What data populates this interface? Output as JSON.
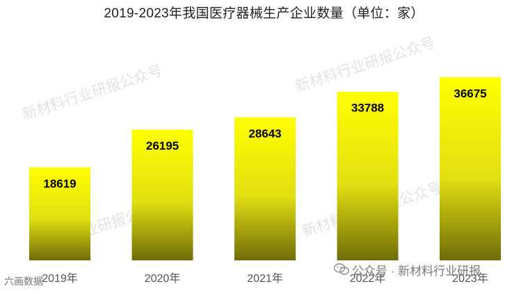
{
  "title": "2019-2023年我国医疗器械生产企业数量（单位：家）",
  "watermark_text": "新材料行业研报公众号",
  "footer_text": "公众号 · 新材料行业研报",
  "corner_logo_text": "六画数据",
  "colors": {
    "bar_top": "#ffff00",
    "bar_mid": "#e2df12",
    "bar_bottom": "#6f6c08",
    "label": "#000000",
    "tick": "#555555"
  },
  "chart_data": {
    "type": "bar",
    "title": "2019-2023年我国医疗器械生产企业数量（单位：家）",
    "categories": [
      "2019年",
      "2020年",
      "2021年",
      "2022年",
      "2023年"
    ],
    "values": [
      18619,
      26195,
      28643,
      33788,
      36675
    ],
    "data_labels": [
      "18619",
      "26195",
      "28643",
      "33788",
      "36675"
    ],
    "xlabel": "",
    "ylabel": "",
    "ylim": [
      0,
      41000
    ],
    "grid": false,
    "legend": "none"
  }
}
